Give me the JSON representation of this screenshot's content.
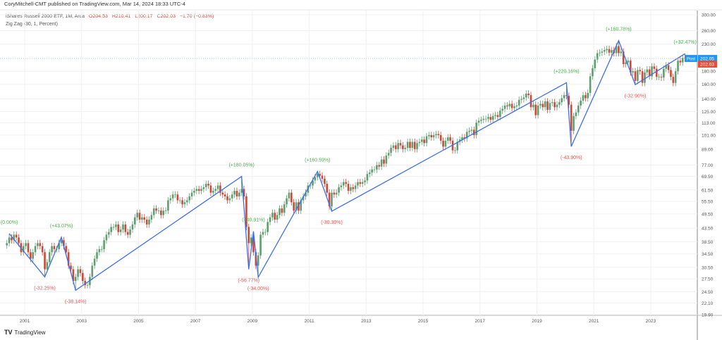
{
  "header": {
    "published": "CoryMitchell-CMT published on TradingView.com, Mar 14, 2024 18:33 UTC-4",
    "symbol": "iShares Russell 2000 ETF, 1M, Arca",
    "open": "O204.53",
    "high": "H210.41",
    "low": "L200.17",
    "close": "C202.03",
    "change": "−1.70 (−0.83%)",
    "indicator": "Zig Zag (30, 1, Percent)"
  },
  "footer": {
    "brand": "TradingView"
  },
  "colors": {
    "up": "#5f9e6e",
    "down": "#c74a3a",
    "zigzag": "#3d6ef0",
    "label_up": "#4caf50",
    "label_down": "#f05350",
    "post": "#2196f3",
    "last": "#e0503c"
  },
  "chart_data": {
    "type": "candlestick",
    "title": "",
    "interval": "1M",
    "y_scale": "log",
    "ylim": [
      19.9,
      300
    ],
    "grid": true,
    "y_ticks": [
      "300.00",
      "260.00",
      "230.00",
      "180.00",
      "160.00",
      "140.00",
      "125.00",
      "113.00",
      "101.00",
      "89.00",
      "77.00",
      "69.50",
      "61.50",
      "55.50",
      "49.50",
      "43.50",
      "38.50",
      "34.50",
      "30.50",
      "27.50",
      "24.50",
      "22.10",
      "19.90"
    ],
    "x_ticks": [
      "2001",
      "2003",
      "2005",
      "2007",
      "2009",
      "2011",
      "2013",
      "2015",
      "2017",
      "2019",
      "2021",
      "2023"
    ],
    "start_month": "2000-05",
    "monthly_close": [
      38,
      40,
      39,
      41,
      40,
      38,
      35,
      37,
      38,
      35,
      33,
      35,
      37,
      38,
      37,
      35,
      30,
      32,
      35,
      37,
      36,
      36,
      38,
      39,
      37,
      35,
      31,
      30,
      27,
      28,
      30,
      29,
      27,
      26,
      26,
      28,
      31,
      33,
      35,
      36,
      36,
      39,
      41,
      42,
      44,
      44,
      45,
      42,
      43,
      45,
      42,
      41,
      43,
      45,
      48,
      50,
      47,
      48,
      47,
      45,
      47,
      49,
      52,
      51,
      51,
      49,
      51,
      51,
      56,
      57,
      59,
      59,
      56,
      56,
      54,
      55,
      56,
      58,
      60,
      61,
      62,
      61,
      62,
      63,
      65,
      64,
      60,
      61,
      62,
      64,
      60,
      59,
      58,
      56,
      57,
      59,
      61,
      58,
      60,
      62,
      58,
      44,
      38,
      40,
      35,
      31,
      34,
      41,
      42,
      42,
      46,
      48,
      50,
      47,
      49,
      52,
      50,
      54,
      57,
      60,
      55,
      51,
      55,
      51,
      56,
      58,
      60,
      64,
      64,
      67,
      69,
      71,
      70,
      68,
      65,
      60,
      53,
      60,
      59,
      60,
      63,
      64,
      66,
      65,
      61,
      63,
      62,
      64,
      66,
      65,
      66,
      67,
      71,
      72,
      74,
      74,
      77,
      76,
      81,
      78,
      84,
      86,
      90,
      92,
      89,
      94,
      92,
      89,
      90,
      95,
      90,
      95,
      89,
      94,
      95,
      97,
      94,
      100,
      101,
      99,
      101,
      102,
      101,
      96,
      91,
      96,
      99,
      96,
      88,
      88,
      95,
      97,
      99,
      98,
      104,
      105,
      106,
      101,
      113,
      115,
      116,
      117,
      117,
      119,
      116,
      120,
      121,
      119,
      126,
      128,
      132,
      131,
      134,
      129,
      131,
      132,
      139,
      140,
      142,
      147,
      145,
      130,
      133,
      121,
      132,
      134,
      130,
      137,
      127,
      135,
      136,
      130,
      133,
      136,
      141,
      145,
      144,
      133,
      105,
      120,
      124,
      132,
      138,
      145,
      141,
      148,
      172,
      185,
      200,
      212,
      213,
      215,
      218,
      220,
      213,
      218,
      212,
      226,
      212,
      215,
      192,
      195,
      198,
      178,
      180,
      165,
      182,
      180,
      162,
      178,
      183,
      172,
      188,
      184,
      171,
      171,
      170,
      184,
      190,
      182,
      171,
      162,
      180,
      198,
      195,
      203,
      202
    ],
    "zigzag": [
      {
        "date": "2000-06",
        "price": 41.4,
        "label": "(0.00%)",
        "dir": "high"
      },
      {
        "date": "2001-09",
        "price": 28.0,
        "label": "(-32.25%)",
        "dir": "low"
      },
      {
        "date": "2002-04",
        "price": 40.1,
        "label": "(+43.07%)",
        "dir": "high"
      },
      {
        "date": "2002-10",
        "price": 24.8,
        "label": "(-38.14%)",
        "dir": "low"
      },
      {
        "date": "2008-08",
        "price": 69.5,
        "label": "(+180.05%)",
        "dir": "high"
      },
      {
        "date": "2008-11",
        "price": 30.0,
        "label": "(-56.77%)",
        "dir": "low"
      },
      {
        "date": "2009-01",
        "price": 42.3,
        "label": "(+40.91%)",
        "dir": "high"
      },
      {
        "date": "2009-03",
        "price": 27.9,
        "label": "(-34.00%)",
        "dir": "low"
      },
      {
        "date": "2011-04",
        "price": 72.7,
        "label": "(+160.59%)",
        "dir": "high"
      },
      {
        "date": "2011-10",
        "price": 50.7,
        "label": "(-30.30%)",
        "dir": "low"
      },
      {
        "date": "2020-01",
        "price": 162.3,
        "label": "(+220.16%)",
        "dir": "high"
      },
      {
        "date": "2020-03",
        "price": 91.1,
        "label": "(-43.90%)",
        "dir": "low"
      },
      {
        "date": "2021-11",
        "price": 237.5,
        "label": "(+160.78%)",
        "dir": "high"
      },
      {
        "date": "2022-06",
        "price": 159.4,
        "label": "(-32.90%)",
        "dir": "low"
      },
      {
        "date": "2024-03",
        "price": 211.1,
        "label": "(+32.47%)",
        "dir": "high"
      }
    ],
    "post_label": "Post",
    "post_price": "202.05",
    "last_price": "202.03"
  }
}
